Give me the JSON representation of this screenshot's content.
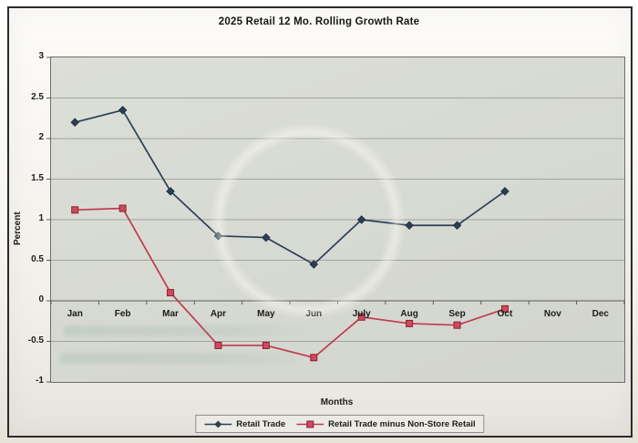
{
  "chart_data": {
    "type": "line",
    "title": "2025 Retail 12 Mo. Rolling Growth Rate",
    "xlabel": "Months",
    "ylabel": "Percent",
    "categories": [
      "Jan",
      "Feb",
      "Mar",
      "Apr",
      "May",
      "Jun",
      "July",
      "Aug",
      "Sep",
      "Oct",
      "Nov",
      "Dec"
    ],
    "ylim": [
      -1,
      3
    ],
    "yticks": [
      3,
      2.5,
      2,
      1.5,
      1,
      0.5,
      0,
      -0.5,
      -1
    ],
    "grid": true,
    "legend_position": "bottom",
    "series": [
      {
        "name": "Retail Trade",
        "marker": "diamond",
        "color": "#2c3e57",
        "marker_fill": "#2c3e57",
        "marker_stroke": "#1d2a3c",
        "values": [
          2.2,
          2.35,
          1.35,
          0.8,
          0.78,
          0.45,
          1.0,
          0.93,
          0.93,
          1.35,
          null,
          null
        ]
      },
      {
        "name": "Retail Trade minus Non-Store Retail",
        "marker": "square",
        "color": "#c03b50",
        "marker_fill": "#cd4a5e",
        "marker_stroke": "#8c1f30",
        "values": [
          1.12,
          1.14,
          0.1,
          -0.55,
          -0.55,
          -0.7,
          -0.2,
          -0.28,
          -0.3,
          -0.1,
          null,
          null
        ]
      }
    ]
  },
  "colors": {
    "frame_border": "#2b2b2b",
    "plot_background": "#d8dbd2",
    "gridline": "#8d928b",
    "axis": "#5a5a5a",
    "legend_background": "#eceae4"
  }
}
